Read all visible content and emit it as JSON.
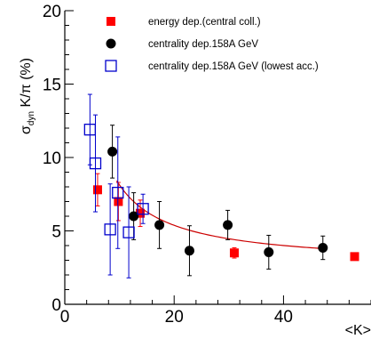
{
  "chart_data": {
    "type": "scatter",
    "xlabel": "<K>",
    "ylabel": {
      "main": "σ",
      "sub": "dyn",
      "rest": " K/π (%)"
    },
    "xlim": [
      0,
      56
    ],
    "ylim": [
      0,
      20
    ],
    "x_ticks": [
      0,
      20,
      40
    ],
    "y_ticks": [
      0,
      5,
      10,
      15,
      20
    ],
    "grid": false,
    "legend_position": "top-right",
    "series": [
      {
        "name": "energy dep.(central coll.)",
        "marker": "filled-square",
        "color": "#ff0000",
        "points": [
          {
            "x": 6.0,
            "y": 7.8,
            "err": 1.1
          },
          {
            "x": 9.8,
            "y": 7.0,
            "err": 1.3
          },
          {
            "x": 13.8,
            "y": 6.2,
            "err": 0.9
          },
          {
            "x": 31.0,
            "y": 3.5,
            "err": 0.35
          },
          {
            "x": 53.0,
            "y": 3.25,
            "err": 0.0
          }
        ]
      },
      {
        "name": "centrality dep.158A GeV",
        "marker": "filled-circle",
        "color": "#000000",
        "points": [
          {
            "x": 8.7,
            "y": 10.4,
            "err": 1.8
          },
          {
            "x": 12.6,
            "y": 6.0,
            "err": 1.6
          },
          {
            "x": 17.3,
            "y": 5.4,
            "err": 1.6
          },
          {
            "x": 22.8,
            "y": 3.65,
            "err": 1.7
          },
          {
            "x": 29.8,
            "y": 5.4,
            "err": 1.0
          },
          {
            "x": 37.3,
            "y": 3.55,
            "err": 1.15
          },
          {
            "x": 47.2,
            "y": 3.85,
            "err": 0.8
          }
        ]
      },
      {
        "name": "centrality dep.158A GeV (lowest acc.)",
        "marker": "open-square",
        "color": "#0000cc",
        "points": [
          {
            "x": 4.6,
            "y": 11.9,
            "err": 2.4
          },
          {
            "x": 5.6,
            "y": 9.6,
            "err": 3.3
          },
          {
            "x": 8.3,
            "y": 5.1,
            "err": 3.1
          },
          {
            "x": 9.7,
            "y": 7.6,
            "err": 3.8
          },
          {
            "x": 11.7,
            "y": 4.9,
            "err": 3.1
          },
          {
            "x": 14.3,
            "y": 6.5,
            "err": 1.0
          }
        ]
      }
    ],
    "fit_curve": {
      "color": "#cc0000",
      "x_start": 9.5,
      "x_end": 47.5,
      "a": 55,
      "b": 2.63
    }
  }
}
